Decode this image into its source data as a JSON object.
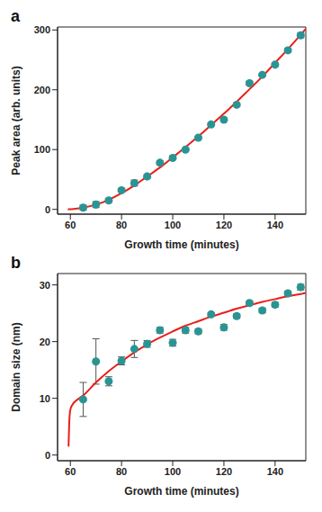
{
  "chart_data": [
    {
      "type": "scatter",
      "title": "a",
      "x_label": "Growth time (minutes)",
      "y_label": "Peak area (arb. units)",
      "xlim": [
        55,
        152
      ],
      "xticks": [
        60,
        80,
        100,
        120,
        140
      ],
      "ylim": [
        -8,
        305
      ],
      "yticks": [
        0,
        100,
        200,
        300
      ],
      "grid": false,
      "series": [
        {
          "type": "scatter",
          "color": "#2a9494",
          "marker": "circle",
          "x": [
            65,
            70,
            75,
            80,
            85,
            90,
            95,
            100,
            105,
            110,
            115,
            120,
            125,
            130,
            135,
            140,
            145,
            150
          ],
          "values": [
            3,
            8,
            15,
            32,
            44,
            55,
            78,
            86,
            100,
            120,
            142,
            150,
            175,
            211,
            225,
            242,
            266,
            291
          ],
          "errors": [
            4,
            5,
            3,
            3,
            5,
            3,
            3,
            3,
            2,
            2,
            2,
            2,
            2,
            3,
            2,
            3,
            3,
            4
          ]
        },
        {
          "type": "line",
          "color": "#e8201a",
          "line_style": "solid",
          "x": [
            59,
            60,
            62,
            65,
            70,
            75,
            80,
            85,
            90,
            95,
            100,
            105,
            110,
            115,
            120,
            125,
            130,
            135,
            140,
            145,
            150,
            152
          ],
          "values": [
            0,
            0.3,
            1,
            3,
            8,
            16,
            27,
            40,
            55,
            70,
            87,
            104,
            122,
            141,
            160,
            180,
            201,
            222,
            245,
            268,
            292,
            302
          ]
        }
      ]
    },
    {
      "type": "scatter",
      "title": "b",
      "x_label": "Growth time (minutes)",
      "y_label": "Domain size (nm)",
      "xlim": [
        55,
        152
      ],
      "xticks": [
        60,
        80,
        100,
        120,
        140
      ],
      "ylim": [
        -1,
        32
      ],
      "yticks": [
        0,
        10,
        20,
        30
      ],
      "grid": false,
      "series": [
        {
          "type": "scatter",
          "color": "#2a9494",
          "marker": "circle",
          "x": [
            65,
            70,
            75,
            80,
            85,
            90,
            95,
            100,
            105,
            110,
            115,
            120,
            125,
            130,
            135,
            140,
            145,
            150
          ],
          "values": [
            9.8,
            16.5,
            13,
            16.6,
            18.7,
            19.6,
            22,
            19.8,
            22,
            21.8,
            24.8,
            22.5,
            24.5,
            26.8,
            25.5,
            26.5,
            28.5,
            29.6
          ],
          "errors": [
            3,
            4,
            0.8,
            0.7,
            1.5,
            0.6,
            0.5,
            0.6,
            0.5,
            0.4,
            0.3,
            0.5,
            0.4,
            0.3,
            0.4,
            0.4,
            0.4,
            0.5
          ]
        },
        {
          "type": "line",
          "color": "#e8201a",
          "line_style": "solid",
          "x": [
            59.3,
            59.6,
            60,
            61,
            62,
            65,
            70,
            75,
            80,
            85,
            90,
            95,
            100,
            105,
            110,
            115,
            120,
            125,
            130,
            135,
            140,
            145,
            150,
            152
          ],
          "values": [
            1.5,
            6,
            8,
            9,
            9.5,
            10.5,
            12.8,
            14.8,
            16.5,
            18.1,
            19.5,
            20.7,
            21.8,
            22.8,
            23.6,
            24.4,
            25.1,
            25.8,
            26.4,
            27,
            27.5,
            28,
            28.4,
            28.6
          ]
        }
      ]
    }
  ]
}
